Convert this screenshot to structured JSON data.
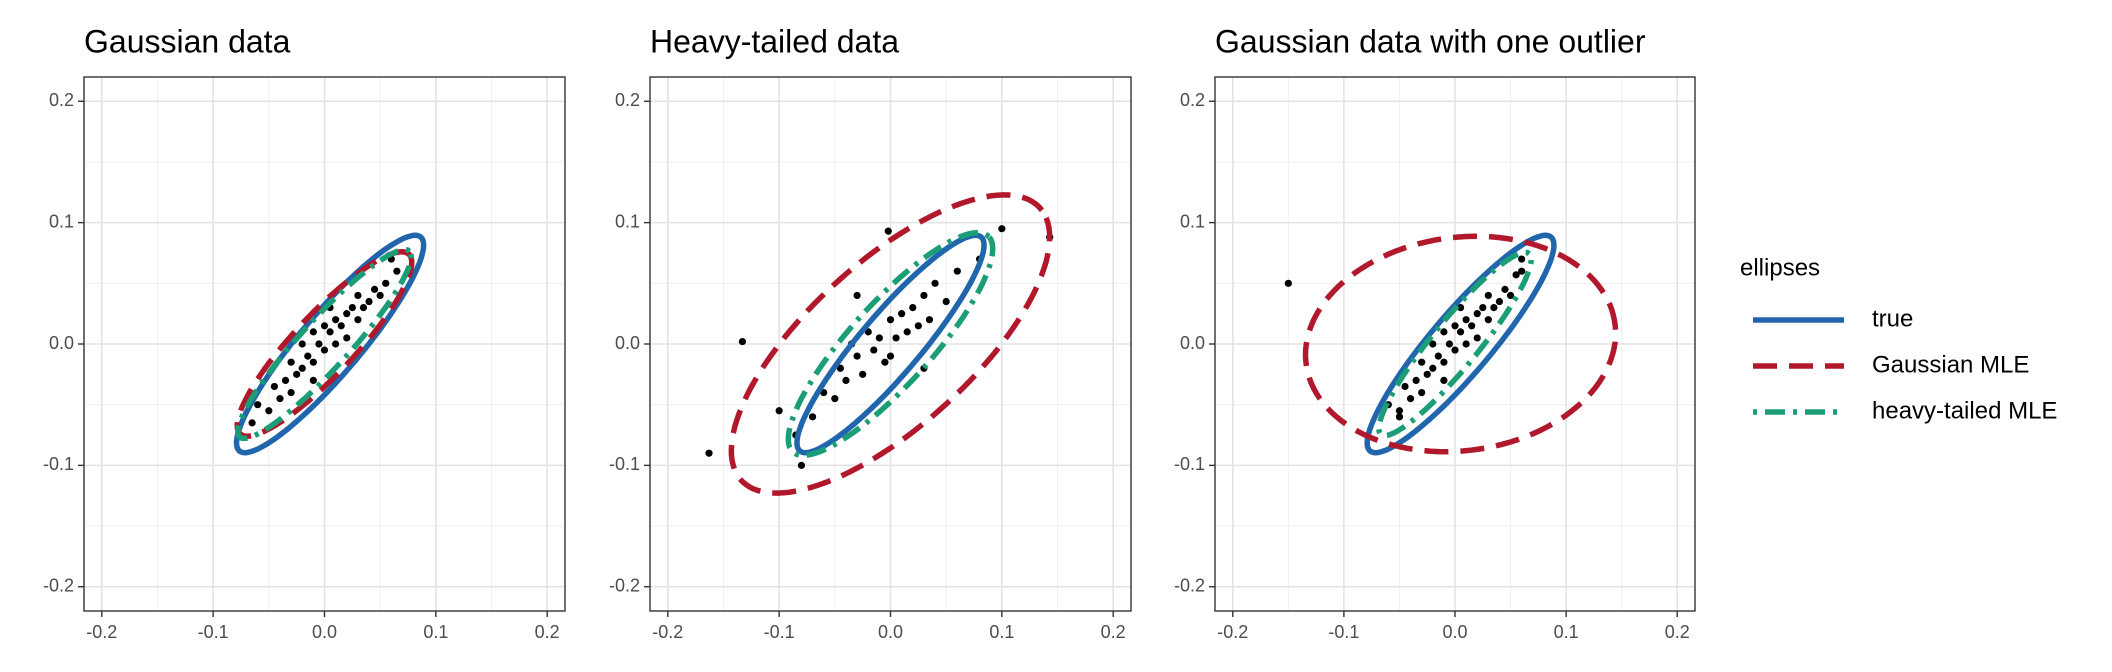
{
  "chart_data": [
    {
      "type": "scatter",
      "title": "Gaussian data",
      "xlim": [
        -0.216,
        0.216
      ],
      "ylim": [
        -0.22,
        0.22
      ],
      "xticks": [
        -0.2,
        -0.1,
        {
          "value": 0,
          "label": "0.0"
        },
        0.1,
        0.2
      ],
      "yticks": [
        -0.2,
        -0.1,
        {
          "value": 0,
          "label": "0.0"
        },
        0.1,
        0.2
      ],
      "grid": true,
      "points": {
        "color": "#000000",
        "x": [
          -0.06,
          -0.05,
          -0.045,
          -0.04,
          -0.035,
          -0.03,
          -0.03,
          -0.025,
          -0.02,
          -0.02,
          -0.015,
          -0.01,
          -0.01,
          -0.005,
          0,
          0,
          0.005,
          0.01,
          0.01,
          0.015,
          0.02,
          0.02,
          0.025,
          0.03,
          0.03,
          0.035,
          0.04,
          0.045,
          0.05,
          0.055,
          0.06,
          -0.065,
          0.065,
          -0.01,
          0.005
        ],
        "y": [
          -0.05,
          -0.055,
          -0.035,
          -0.045,
          -0.03,
          -0.04,
          -0.015,
          -0.025,
          -0.02,
          0.0,
          -0.01,
          -0.015,
          0.01,
          0.0,
          -0.005,
          0.015,
          0.01,
          0.0,
          0.02,
          0.015,
          0.025,
          0.005,
          0.03,
          0.02,
          0.04,
          0.03,
          0.035,
          0.045,
          0.04,
          0.05,
          0.07,
          -0.065,
          0.06,
          -0.03,
          0.03
        ]
      },
      "ellipses": [
        {
          "color": "#2166ac",
          "dash": "solid",
          "center": [
            0.005,
            0.0
          ],
          "radii": [
            0.12,
            0.026
          ],
          "angle": 47
        },
        {
          "color": "#b2182b",
          "dash": "dashed",
          "center": [
            0.0,
            0.0
          ],
          "radii": [
            0.106,
            0.026
          ],
          "angle": 44
        },
        {
          "color": "#1b9e77",
          "dash": "dotdash",
          "center": [
            0.0,
            0.0
          ],
          "radii": [
            0.108,
            0.021
          ],
          "angle": 45
        }
      ]
    },
    {
      "type": "scatter",
      "title": "Heavy-tailed data",
      "xlim": [
        -0.216,
        0.216
      ],
      "ylim": [
        -0.22,
        0.22
      ],
      "xticks": [
        -0.2,
        -0.1,
        {
          "value": 0,
          "label": "0.0"
        },
        0.1,
        0.2
      ],
      "yticks": [
        -0.2,
        -0.1,
        {
          "value": 0,
          "label": "0.0"
        },
        0.1,
        0.2
      ],
      "grid": true,
      "points": {
        "color": "#000000",
        "x": [
          -0.163,
          -0.133,
          -0.1,
          -0.08,
          -0.085,
          -0.07,
          -0.06,
          -0.05,
          -0.045,
          -0.04,
          -0.035,
          -0.03,
          -0.025,
          -0.02,
          -0.015,
          -0.01,
          -0.005,
          0,
          0.005,
          0.01,
          0.015,
          0.02,
          0.025,
          0.03,
          0.035,
          0.04,
          0.05,
          0.06,
          0.08,
          0.1,
          0.143,
          -0.002,
          -0.03,
          0.03,
          0.0
        ],
        "y": [
          -0.09,
          0.002,
          -0.055,
          -0.1,
          -0.075,
          -0.06,
          -0.04,
          -0.045,
          -0.02,
          -0.03,
          0.0,
          -0.01,
          -0.025,
          0.01,
          -0.005,
          0.005,
          -0.015,
          0.02,
          0.005,
          0.025,
          0.01,
          0.03,
          0.015,
          0.04,
          0.02,
          0.05,
          0.035,
          0.06,
          0.07,
          0.095,
          0.088,
          0.093,
          0.04,
          -0.02,
          -0.01
        ]
      },
      "ellipses": [
        {
          "color": "#2166ac",
          "dash": "solid",
          "center": [
            0.0,
            0.0
          ],
          "radii": [
            0.12,
            0.026
          ],
          "angle": 47
        },
        {
          "color": "#b2182b",
          "dash": "dashed",
          "center": [
            0.0,
            0.0
          ],
          "radii": [
            0.175,
            0.07
          ],
          "angle": 39
        },
        {
          "color": "#1b9e77",
          "dash": "dotdash",
          "center": [
            0.0,
            0.0
          ],
          "radii": [
            0.125,
            0.035
          ],
          "angle": 45
        }
      ]
    },
    {
      "type": "scatter",
      "title": "Gaussian data with one outlier",
      "xlim": [
        -0.216,
        0.216
      ],
      "ylim": [
        -0.22,
        0.22
      ],
      "xticks": [
        -0.2,
        -0.1,
        {
          "value": 0,
          "label": "0.0"
        },
        0.1,
        0.2
      ],
      "yticks": [
        -0.2,
        -0.1,
        {
          "value": 0,
          "label": "0.0"
        },
        0.1,
        0.2
      ],
      "grid": true,
      "legend": "right",
      "legend_title": "ellipses",
      "points": {
        "color": "#000000",
        "x": [
          -0.06,
          -0.05,
          -0.045,
          -0.04,
          -0.035,
          -0.03,
          -0.03,
          -0.025,
          -0.02,
          -0.02,
          -0.015,
          -0.01,
          -0.01,
          -0.005,
          0,
          0,
          0.005,
          0.01,
          0.01,
          0.015,
          0.02,
          0.02,
          0.025,
          0.03,
          0.03,
          0.035,
          0.04,
          0.045,
          0.05,
          0.055,
          0.06,
          -0.05,
          0.06,
          -0.01,
          0.005,
          -0.15
        ],
        "y": [
          -0.05,
          -0.055,
          -0.035,
          -0.045,
          -0.03,
          -0.04,
          -0.015,
          -0.025,
          -0.02,
          0.0,
          -0.01,
          -0.015,
          0.01,
          0.0,
          -0.005,
          0.015,
          0.01,
          0.0,
          0.02,
          0.015,
          0.025,
          0.005,
          0.03,
          0.02,
          0.04,
          0.03,
          0.035,
          0.045,
          0.04,
          0.057,
          0.07,
          -0.06,
          0.06,
          -0.03,
          0.03,
          0.05
        ]
      },
      "ellipses": [
        {
          "name": "true",
          "color": "#2166ac",
          "dash": "solid",
          "center": [
            0.005,
            0.0
          ],
          "radii": [
            0.12,
            0.026
          ],
          "angle": 47
        },
        {
          "name": "Gaussian MLE",
          "color": "#b2182b",
          "dash": "dashed",
          "center": [
            0.005,
            0.0
          ],
          "radii": [
            0.14,
            0.088
          ],
          "angle": 6
        },
        {
          "name": "heavy-tailed MLE",
          "color": "#1b9e77",
          "dash": "dotdash",
          "center": [
            0.0,
            0.0
          ],
          "radii": [
            0.1,
            0.02
          ],
          "angle": 48
        }
      ]
    }
  ]
}
